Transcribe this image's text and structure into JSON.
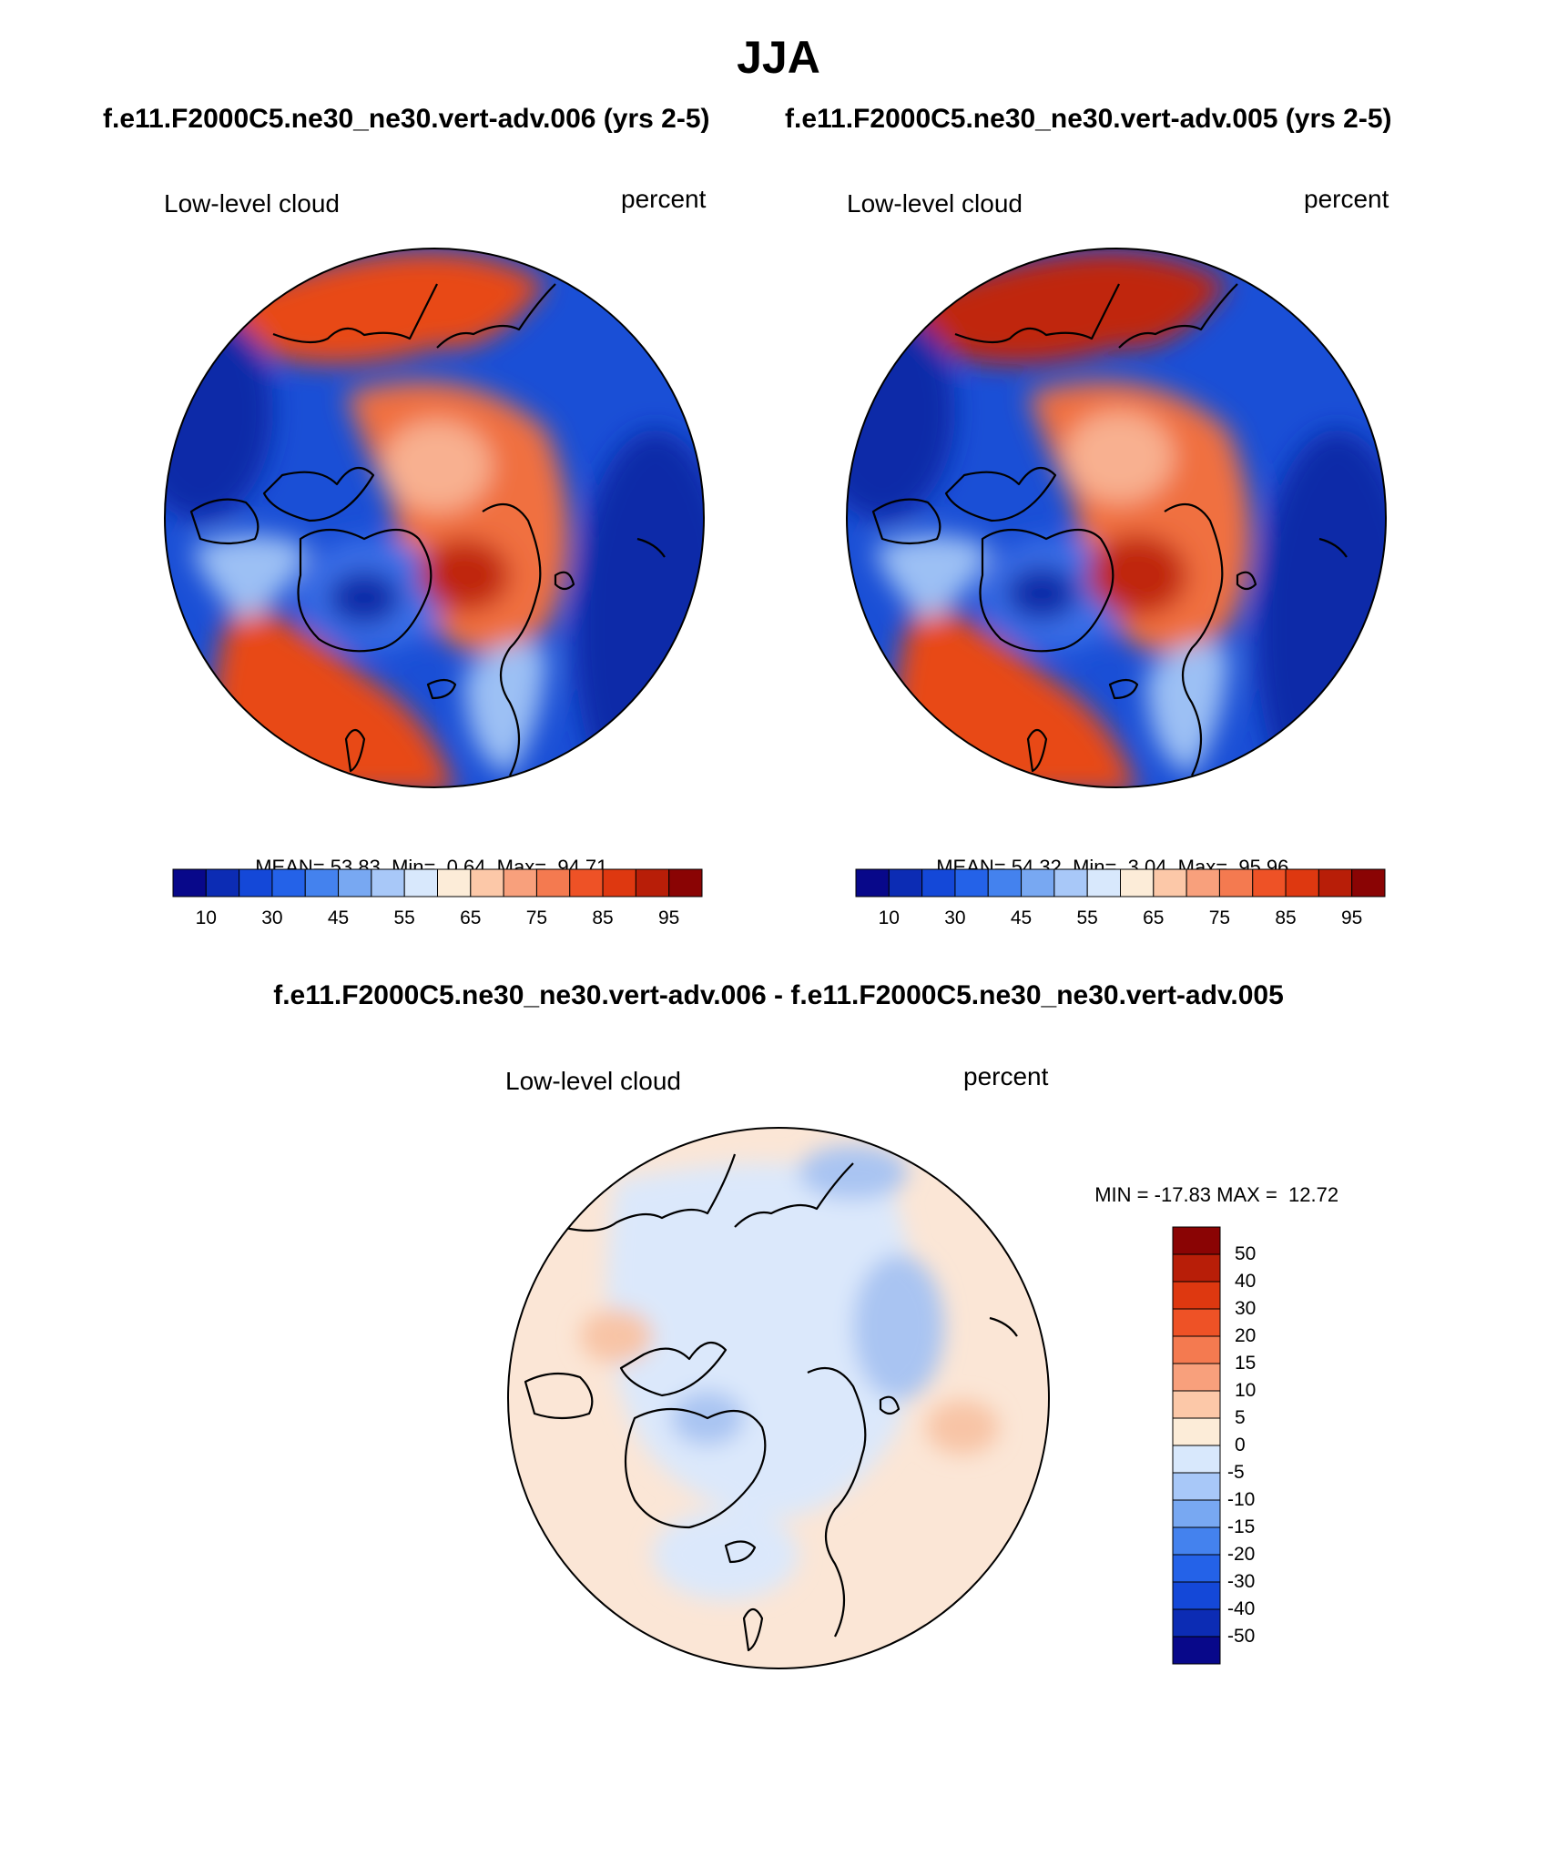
{
  "season": "JJA",
  "cases": {
    "test": "f.e11.F2000C5.ne30_ne30.vert-adv.006 (yrs 2-5)",
    "control": "f.e11.F2000C5.ne30_ne30.vert-adv.005 (yrs 2-5)",
    "difference": "f.e11.F2000C5.ne30_ne30.vert-adv.006 - f.e11.F2000C5.ne30_ne30.vert-adv.005"
  },
  "panels": [
    {
      "variable": "Low-level cloud",
      "units": "percent",
      "stats": {
        "mean_label": "MEAN=",
        "mean": "53.83",
        "min_label": "Min=",
        "min": "0.64",
        "max_label": "Max=",
        "max": "94.71"
      }
    },
    {
      "variable": "Low-level cloud",
      "units": "percent",
      "stats": {
        "mean_label": "MEAN=",
        "mean": "54.32",
        "min_label": "Min=",
        "min": "3.04",
        "max_label": "Max=",
        "max": "95.96"
      }
    },
    {
      "variable": "Low-level cloud",
      "units": "percent",
      "stats": {
        "min_label": "MIN =",
        "min": "-17.83",
        "max_label": "MAX =",
        "max": "12.72"
      }
    }
  ],
  "colorbar_abs": {
    "colors": [
      "#08088a",
      "#0c2cb4",
      "#1448d8",
      "#2462e8",
      "#4482ee",
      "#78a8f2",
      "#a8c8f8",
      "#d8e8fc",
      "#fcecd8",
      "#fcc8a8",
      "#f8a07c",
      "#f47a50",
      "#ee5226",
      "#de3810",
      "#b81e08",
      "#8a0404"
    ],
    "labels": [
      "10",
      "30",
      "45",
      "55",
      "65",
      "75",
      "85",
      "95"
    ]
  },
  "colorbar_diff": {
    "colors": [
      "#8a0404",
      "#b81e08",
      "#de3810",
      "#ee5226",
      "#f47a50",
      "#f8a07c",
      "#fcc8a8",
      "#fcecd8",
      "#d8e8fc",
      "#a8c8f8",
      "#78a8f2",
      "#4482ee",
      "#2462e8",
      "#1448d8",
      "#0c2cb4",
      "#08088a"
    ],
    "labels": [
      "50",
      "40",
      "30",
      "20",
      "15",
      "10",
      "5",
      "0",
      "-5",
      "-10",
      "-15",
      "-20",
      "-30",
      "-40",
      "-50"
    ]
  },
  "map_colors": {
    "ocean_blue": "#1a4fd6",
    "deep_blue": "#0e2aa8",
    "mid_blue": "#3a70e8",
    "light_blue": "#9cc0f4",
    "pale": "#f6e6da",
    "light_red": "#f8b090",
    "mid_red": "#f07040",
    "red": "#e84818",
    "dark_red": "#c02808",
    "diff_pale_blue": "#dbe8fb",
    "diff_pale_red": "#fbe6d6",
    "diff_blue": "#a9c4f2",
    "diff_red": "#f8c4a6",
    "coast": "#000000"
  }
}
